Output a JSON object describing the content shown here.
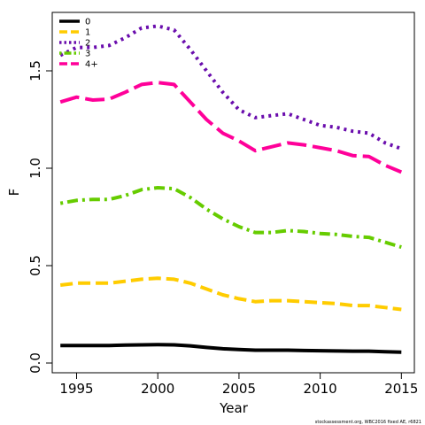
{
  "chart_data": {
    "type": "line",
    "xlabel": "Year",
    "ylabel": "F",
    "xlim": [
      1993.5,
      2015.8
    ],
    "ylim": [
      -0.05,
      1.8
    ],
    "xticks": [
      1995,
      2000,
      2005,
      2010,
      2015
    ],
    "xtick_labels": [
      "1995",
      "2000",
      "2005",
      "2010",
      "2015"
    ],
    "yticks": [
      0.0,
      0.5,
      1.0,
      1.5
    ],
    "ytick_labels": [
      "0.0",
      "0.5",
      "1.0",
      "1.5"
    ],
    "grid": false,
    "legend_position": "top-left",
    "footnote": "stockassessment.org, WBC2016 fixed AE, r6821",
    "x": [
      1994,
      1995,
      1996,
      1997,
      1998,
      1999,
      2000,
      2001,
      2002,
      2003,
      2004,
      2005,
      2006,
      2007,
      2008,
      2009,
      2010,
      2011,
      2012,
      2013,
      2014,
      2015
    ],
    "series": [
      {
        "name": "0",
        "color": "#000000",
        "dash": "solid",
        "values": [
          0.09,
          0.09,
          0.09,
          0.09,
          0.092,
          0.093,
          0.094,
          0.093,
          0.088,
          0.08,
          0.073,
          0.069,
          0.066,
          0.066,
          0.066,
          0.064,
          0.063,
          0.062,
          0.061,
          0.061,
          0.058,
          0.056
        ]
      },
      {
        "name": "1",
        "color": "#FFCC00",
        "dash": "dashed",
        "values": [
          0.4,
          0.41,
          0.41,
          0.41,
          0.42,
          0.43,
          0.435,
          0.43,
          0.41,
          0.38,
          0.35,
          0.33,
          0.315,
          0.32,
          0.32,
          0.315,
          0.31,
          0.305,
          0.295,
          0.295,
          0.285,
          0.275
        ]
      },
      {
        "name": "2",
        "color": "#6A0DAD",
        "dash": "dotted",
        "values": [
          1.58,
          1.62,
          1.62,
          1.63,
          1.67,
          1.72,
          1.73,
          1.71,
          1.61,
          1.5,
          1.39,
          1.3,
          1.26,
          1.27,
          1.28,
          1.25,
          1.22,
          1.21,
          1.19,
          1.18,
          1.13,
          1.1
        ]
      },
      {
        "name": "3",
        "color": "#66CC00",
        "dash": "dotdash",
        "values": [
          0.82,
          0.835,
          0.84,
          0.84,
          0.86,
          0.89,
          0.9,
          0.895,
          0.85,
          0.79,
          0.74,
          0.7,
          0.67,
          0.67,
          0.68,
          0.675,
          0.665,
          0.66,
          0.65,
          0.645,
          0.62,
          0.595
        ]
      },
      {
        "name": "4+",
        "color": "#FF0099",
        "dash": "longdash",
        "values": [
          1.34,
          1.365,
          1.35,
          1.355,
          1.39,
          1.43,
          1.44,
          1.43,
          1.34,
          1.25,
          1.18,
          1.14,
          1.09,
          1.11,
          1.13,
          1.12,
          1.105,
          1.09,
          1.065,
          1.06,
          1.015,
          0.98
        ]
      }
    ]
  }
}
